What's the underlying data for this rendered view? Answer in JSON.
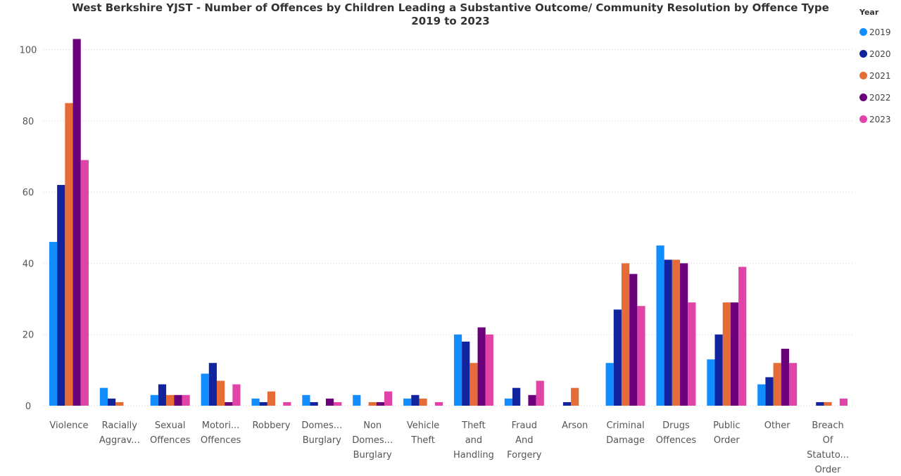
{
  "chart_data": {
    "type": "bar",
    "title_line1": "West Berkshire YJST - Number of Offences by Children Leading a Substantive Outcome/ Community Resolution by Offence Type",
    "title_line2": "2019 to 2023",
    "legend_title": "Year",
    "legend_position": "top-right",
    "grid": true,
    "ylim": [
      0,
      110
    ],
    "yticks": [
      0,
      20,
      40,
      60,
      80,
      100
    ],
    "categories": [
      "Violence",
      "Racially Aggrav...",
      "Sexual Offences",
      "Motori... Offences",
      "Robbery",
      "Domes... Burglary",
      "Non Domes... Burglary",
      "Vehicle Theft",
      "Theft and Handling",
      "Fraud And Forgery",
      "Arson",
      "Criminal Damage",
      "Drugs Offences",
      "Public Order",
      "Other",
      "Breach Of Statuto... Order"
    ],
    "category_label_lines": [
      [
        "Violence"
      ],
      [
        "Racially",
        "Aggrav..."
      ],
      [
        "Sexual",
        "Offences"
      ],
      [
        "Motori...",
        "Offences"
      ],
      [
        "Robbery"
      ],
      [
        "Domes...",
        "Burglary"
      ],
      [
        "Non",
        "Domes...",
        "Burglary"
      ],
      [
        "Vehicle",
        "Theft"
      ],
      [
        "Theft",
        "and",
        "Handling"
      ],
      [
        "Fraud",
        "And",
        "Forgery"
      ],
      [
        "Arson"
      ],
      [
        "Criminal",
        "Damage"
      ],
      [
        "Drugs",
        "Offences"
      ],
      [
        "Public",
        "Order"
      ],
      [
        "Other"
      ],
      [
        "Breach",
        "Of",
        "Statuto...",
        "Order"
      ]
    ],
    "series": [
      {
        "name": "2019",
        "color": "#118DFF",
        "values": [
          46,
          5,
          3,
          9,
          2,
          3,
          3,
          2,
          20,
          2,
          0,
          12,
          45,
          13,
          6,
          0
        ]
      },
      {
        "name": "2020",
        "color": "#12239E",
        "values": [
          62,
          2,
          6,
          12,
          1,
          1,
          0,
          3,
          18,
          5,
          1,
          27,
          41,
          20,
          8,
          1
        ]
      },
      {
        "name": "2021",
        "color": "#E66C37",
        "values": [
          85,
          1,
          3,
          7,
          4,
          0,
          1,
          2,
          12,
          0,
          5,
          40,
          41,
          29,
          12,
          1
        ]
      },
      {
        "name": "2022",
        "color": "#6B007B",
        "values": [
          103,
          0,
          3,
          1,
          0,
          2,
          1,
          0,
          22,
          3,
          0,
          37,
          40,
          29,
          16,
          0
        ]
      },
      {
        "name": "2023",
        "color": "#E044A7",
        "values": [
          69,
          0,
          3,
          6,
          1,
          1,
          4,
          1,
          20,
          7,
          0,
          28,
          29,
          39,
          12,
          2
        ]
      }
    ]
  }
}
